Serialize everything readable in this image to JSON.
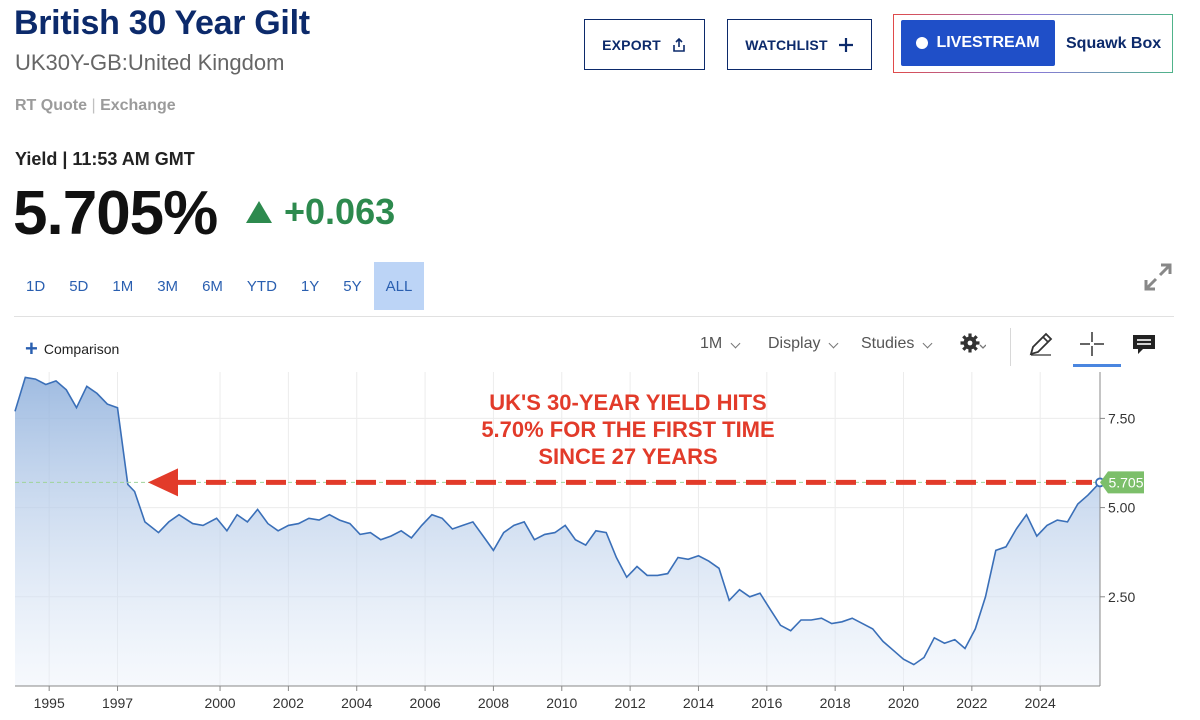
{
  "header": {
    "title": "British 30 Year Gilt",
    "subtitle": "UK30Y-GB:United Kingdom",
    "rt_quote": "RT Quote",
    "exchange": "Exchange",
    "yield_label": "Yield | 11:53 AM GMT",
    "price": "5.705%",
    "change": "+0.063",
    "change_color": "#2d8a4e"
  },
  "actions": {
    "export_label": "EXPORT",
    "watchlist_label": "WATCHLIST",
    "livestream_label": "LIVESTREAM",
    "squawk_label": "Squawk Box"
  },
  "ranges": [
    "1D",
    "5D",
    "1M",
    "3M",
    "6M",
    "YTD",
    "1Y",
    "5Y",
    "ALL"
  ],
  "active_range": "ALL",
  "toolbar": {
    "comparison_label": "Comparison",
    "interval_label": "1M",
    "display_label": "Display",
    "studies_label": "Studies"
  },
  "chart_data": {
    "type": "area",
    "ylim": [
      0,
      8.8
    ],
    "xlim": [
      1994.0,
      2025.75
    ],
    "yticks": [
      2.5,
      5.0,
      7.5
    ],
    "ytick_labels": [
      "2.50",
      "5.00",
      "7.50"
    ],
    "xticks": [
      1995,
      1997,
      2000,
      2002,
      2004,
      2006,
      2008,
      2010,
      2012,
      2014,
      2016,
      2018,
      2020,
      2022,
      2024
    ],
    "xtick_labels": [
      "1995",
      "1997",
      "2000",
      "2002",
      "2004",
      "2006",
      "2008",
      "2010",
      "2012",
      "2014",
      "2016",
      "2018",
      "2020",
      "2022",
      "2024"
    ],
    "grid": true,
    "line_color": "#3a6fb8",
    "last_value_label": "5.705",
    "last_value": 5.705,
    "last_value_color": "#7cbf6a",
    "annotation": {
      "lines": [
        "UK'S 30-YEAR YIELD HITS",
        "5.70% FOR THE FIRST TIME",
        "SINCE 27 YEARS"
      ],
      "color": "#e23b2a",
      "level": 5.705
    },
    "series": [
      {
        "x": [
          1994.0,
          1994.3,
          1994.6,
          1994.9,
          1995.2,
          1995.5,
          1995.8,
          1996.1,
          1996.4,
          1996.7,
          1997.0,
          1997.3,
          1997.5,
          1997.8,
          1998.2,
          1998.5,
          1998.8,
          1999.2,
          1999.5,
          1999.9,
          2000.2,
          2000.5,
          2000.8,
          2001.1,
          2001.4,
          2001.7,
          2002.0,
          2002.3,
          2002.6,
          2002.9,
          2003.2,
          2003.5,
          2003.8,
          2004.1,
          2004.4,
          2004.7,
          2005.0,
          2005.3,
          2005.6,
          2005.9,
          2006.2,
          2006.5,
          2006.8,
          2007.1,
          2007.4,
          2007.7,
          2008.0,
          2008.3,
          2008.6,
          2008.9,
          2009.2,
          2009.5,
          2009.8,
          2010.1,
          2010.4,
          2010.7,
          2011.0,
          2011.3,
          2011.6,
          2011.9,
          2012.2,
          2012.5,
          2012.8,
          2013.1,
          2013.4,
          2013.7,
          2014.0,
          2014.3,
          2014.6,
          2014.9,
          2015.2,
          2015.5,
          2015.8,
          2016.1,
          2016.4,
          2016.7,
          2017.0,
          2017.3,
          2017.6,
          2017.9,
          2018.2,
          2018.5,
          2018.8,
          2019.1,
          2019.4,
          2019.7,
          2020.0,
          2020.3,
          2020.6,
          2020.9,
          2021.2,
          2021.5,
          2021.8,
          2022.1,
          2022.4,
          2022.7,
          2023.0,
          2023.3,
          2023.6,
          2023.9,
          2024.2,
          2024.5,
          2024.8,
          2025.1,
          2025.4,
          2025.75
        ],
        "y": [
          7.7,
          8.65,
          8.6,
          8.45,
          8.55,
          8.3,
          7.8,
          8.4,
          8.2,
          7.9,
          7.8,
          5.65,
          5.45,
          4.6,
          4.3,
          4.6,
          4.8,
          4.55,
          4.5,
          4.7,
          4.35,
          4.8,
          4.6,
          4.95,
          4.55,
          4.35,
          4.5,
          4.55,
          4.7,
          4.65,
          4.8,
          4.65,
          4.55,
          4.25,
          4.3,
          4.1,
          4.2,
          4.35,
          4.15,
          4.5,
          4.8,
          4.7,
          4.4,
          4.5,
          4.6,
          4.2,
          3.8,
          4.3,
          4.5,
          4.6,
          4.1,
          4.25,
          4.3,
          4.5,
          4.1,
          3.95,
          4.35,
          4.3,
          3.6,
          3.05,
          3.35,
          3.1,
          3.1,
          3.15,
          3.6,
          3.55,
          3.65,
          3.5,
          3.3,
          2.4,
          2.7,
          2.5,
          2.6,
          2.15,
          1.7,
          1.55,
          1.85,
          1.85,
          1.9,
          1.75,
          1.8,
          1.9,
          1.75,
          1.6,
          1.25,
          1.0,
          0.75,
          0.6,
          0.8,
          1.35,
          1.2,
          1.3,
          1.05,
          1.6,
          2.5,
          3.8,
          3.9,
          4.4,
          4.8,
          4.2,
          4.5,
          4.65,
          4.6,
          5.1,
          5.35,
          5.705
        ]
      }
    ]
  }
}
